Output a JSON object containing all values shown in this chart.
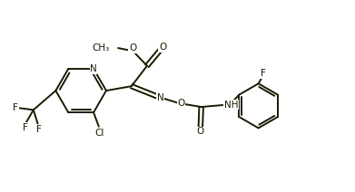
{
  "bg_color": "#ffffff",
  "line_color": "#1a1a00",
  "text_color": "#1a1a00",
  "line_width": 1.4,
  "font_size": 7.5,
  "figsize": [
    3.91,
    2.12
  ],
  "dpi": 100,
  "xlim": [
    0,
    9.5
  ],
  "ylim": [
    0,
    5.15
  ]
}
